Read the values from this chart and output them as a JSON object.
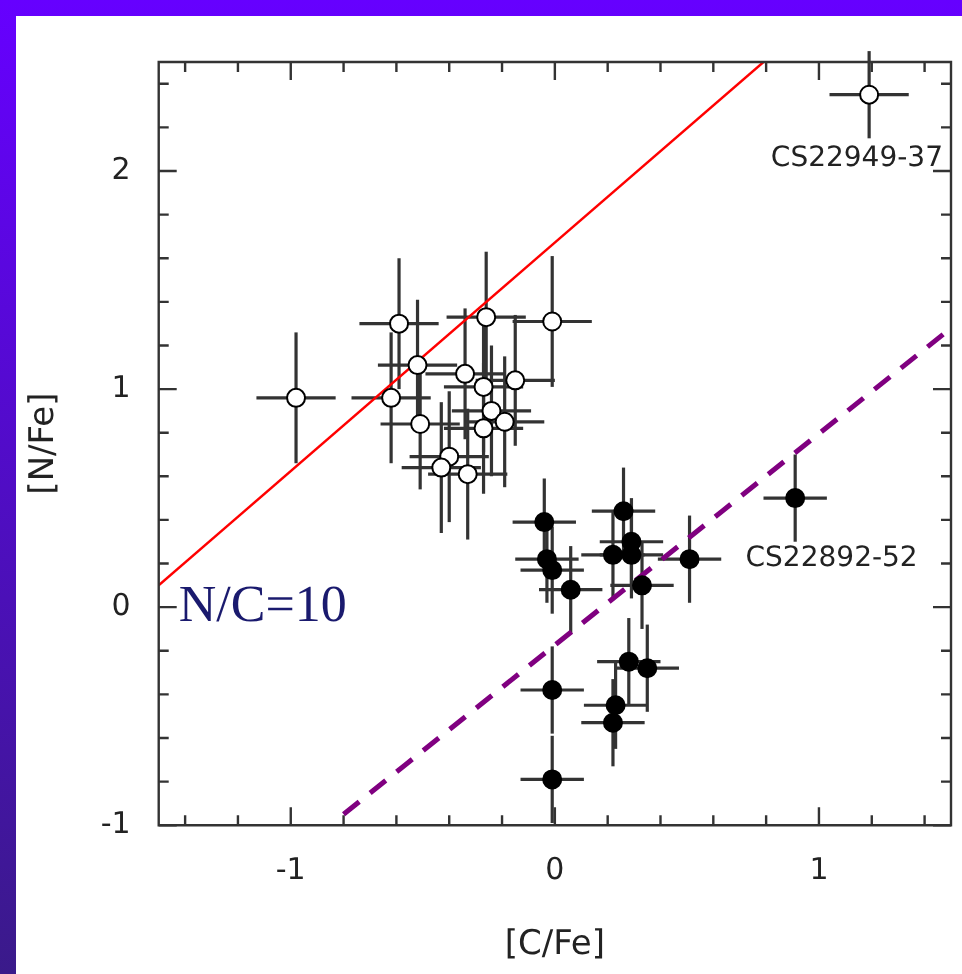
{
  "chart_data": {
    "type": "scatter",
    "xlabel": "[C/Fe]",
    "ylabel": "[N/Fe]",
    "xlim": [
      -1.5,
      1.5
    ],
    "ylim": [
      -1,
      2.5
    ],
    "xticks": [
      {
        "value": -1.4,
        "label": null
      },
      {
        "value": -1.2,
        "label": null
      },
      -1,
      {
        "value": -0.8,
        "label": null
      },
      {
        "value": -0.6,
        "label": null
      },
      {
        "value": -0.4,
        "label": null
      },
      {
        "value": -0.2,
        "label": null
      },
      0,
      {
        "value": 0.2,
        "label": null
      },
      {
        "value": 0.4,
        "label": null
      },
      {
        "value": 0.6,
        "label": null
      },
      {
        "value": 0.8,
        "label": null
      },
      1,
      {
        "value": 1.2,
        "label": null
      },
      {
        "value": 1.4,
        "label": null
      }
    ],
    "yticks": [
      -1,
      {
        "value": -0.8,
        "label": null
      },
      {
        "value": -0.6,
        "label": null
      },
      {
        "value": -0.4,
        "label": null
      },
      {
        "value": -0.2,
        "label": null
      },
      0,
      {
        "value": 0.2,
        "label": null
      },
      {
        "value": 0.4,
        "label": null
      },
      {
        "value": 0.6,
        "label": null
      },
      {
        "value": 0.8,
        "label": null
      },
      1,
      {
        "value": 1.2,
        "label": null
      },
      {
        "value": 1.4,
        "label": null
      },
      {
        "value": 1.6,
        "label": null
      },
      {
        "value": 1.8,
        "label": null
      },
      2,
      {
        "value": 2.2,
        "label": null
      },
      {
        "value": 2.4,
        "label": null
      }
    ],
    "grid": false,
    "legend": false,
    "series": [
      {
        "color": "#ffffff",
        "marker": "circle",
        "x": [
          -0.98,
          -0.59,
          -0.52,
          -0.62,
          -0.51,
          -0.4,
          -0.43,
          -0.33,
          -0.34,
          -0.27,
          -0.26,
          -0.01,
          -0.15,
          -0.24,
          -0.19,
          -0.27,
          1.19
        ],
        "values": [
          0.96,
          1.3,
          1.11,
          0.96,
          0.84,
          0.69,
          0.64,
          0.61,
          1.07,
          1.01,
          1.33,
          1.31,
          1.04,
          0.9,
          0.85,
          0.82,
          2.35
        ],
        "errors": [
          0.3,
          0.3,
          0.3,
          0.3,
          0.3,
          0.3,
          0.3,
          0.3,
          0.3,
          0.3,
          0.3,
          0.3,
          0.3,
          0.3,
          0.3,
          0.3,
          0.2
        ],
        "xerrors": [
          0.15,
          0.15,
          0.15,
          0.15,
          0.15,
          0.15,
          0.15,
          0.15,
          0.15,
          0.15,
          0.15,
          0.15,
          0.15,
          0.15,
          0.15,
          0.15,
          0.15
        ]
      },
      {
        "color": "#000000",
        "marker": "circle",
        "x": [
          -0.04,
          -0.03,
          -0.01,
          0.06,
          0.26,
          0.29,
          0.22,
          0.29,
          0.33,
          0.51,
          0.91,
          0.28,
          0.35,
          0.23,
          0.22,
          -0.01,
          -0.01
        ],
        "values": [
          0.39,
          0.22,
          0.17,
          0.08,
          0.44,
          0.3,
          0.24,
          0.24,
          0.1,
          0.22,
          0.5,
          -0.25,
          -0.28,
          -0.45,
          -0.53,
          -0.38,
          -0.79
        ],
        "errors": [
          0.2,
          0.2,
          0.2,
          0.2,
          0.2,
          0.2,
          0.2,
          0.2,
          0.2,
          0.2,
          0.2,
          0.2,
          0.2,
          0.2,
          0.2,
          0.2,
          0.2
        ],
        "xerrors": [
          0.12,
          0.12,
          0.12,
          0.12,
          0.12,
          0.12,
          0.12,
          0.12,
          0.12,
          0.12,
          0.12,
          0.12,
          0.12,
          0.12,
          0.12,
          0.12,
          0.12
        ]
      },
      {
        "type": "line",
        "color": "#ff0000",
        "line_style": "solid",
        "x": [
          -1.5,
          0.79
        ],
        "values": [
          0.1,
          2.5
        ]
      },
      {
        "type": "line",
        "color": "#800080",
        "line_style": "dashed",
        "x": [
          -0.8,
          1.5
        ],
        "values": [
          -0.95,
          1.28
        ]
      }
    ],
    "annotations": [
      {
        "text": "CS22949-37",
        "x": 1.19,
        "y": 2.35
      },
      {
        "text": "CS22892-52",
        "x": 0.51,
        "y": 0.22
      },
      "N/C=10"
    ]
  }
}
